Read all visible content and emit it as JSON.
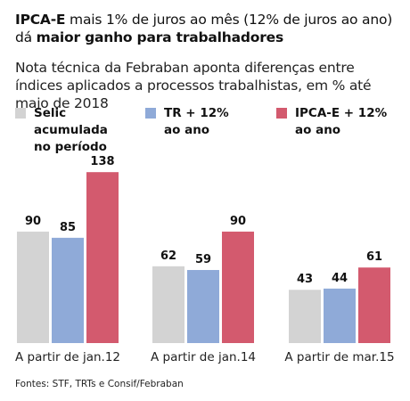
{
  "header": {
    "title_bold_1": "IPCA-E",
    "title_plain_1": " mais 1% de juros ao mês (12% de juros ao ano)",
    "title_plain_2": "dá ",
    "title_bold_2": "maior ganho para trabalhadores",
    "subtitle": "Nota técnica da Febraban aponta diferenças entre índices aplicados a processos trabalhistas, em % até maio de 2018"
  },
  "legend": [
    {
      "line1": "Selic acumulada",
      "line2": "no período",
      "color": "#d3d3d3"
    },
    {
      "line1": "TR + 12%",
      "line2": "ao ano",
      "color": "#8faad8"
    },
    {
      "line1": "IPCA-E + 12%",
      "line2": "ao ano",
      "color": "#d35a6e"
    }
  ],
  "chart_data": {
    "type": "bar",
    "categories": [
      "A partir de jan.12",
      "A partir de jan.14",
      "A partir de mar.15"
    ],
    "series": [
      {
        "name": "Selic acumulada no período",
        "values": [
          90,
          62,
          43
        ],
        "color": "#d3d3d3"
      },
      {
        "name": "TR + 12% ao ano",
        "values": [
          85,
          59,
          44
        ],
        "color": "#8faad8"
      },
      {
        "name": "IPCA-E + 12% ao ano",
        "values": [
          138,
          90,
          61
        ],
        "color": "#d35a6e"
      }
    ],
    "ylim": [
      0,
      140
    ],
    "grid": false,
    "legend_position": "top"
  },
  "source": "Fontes: STF, TRTs e Consif/Febraban"
}
